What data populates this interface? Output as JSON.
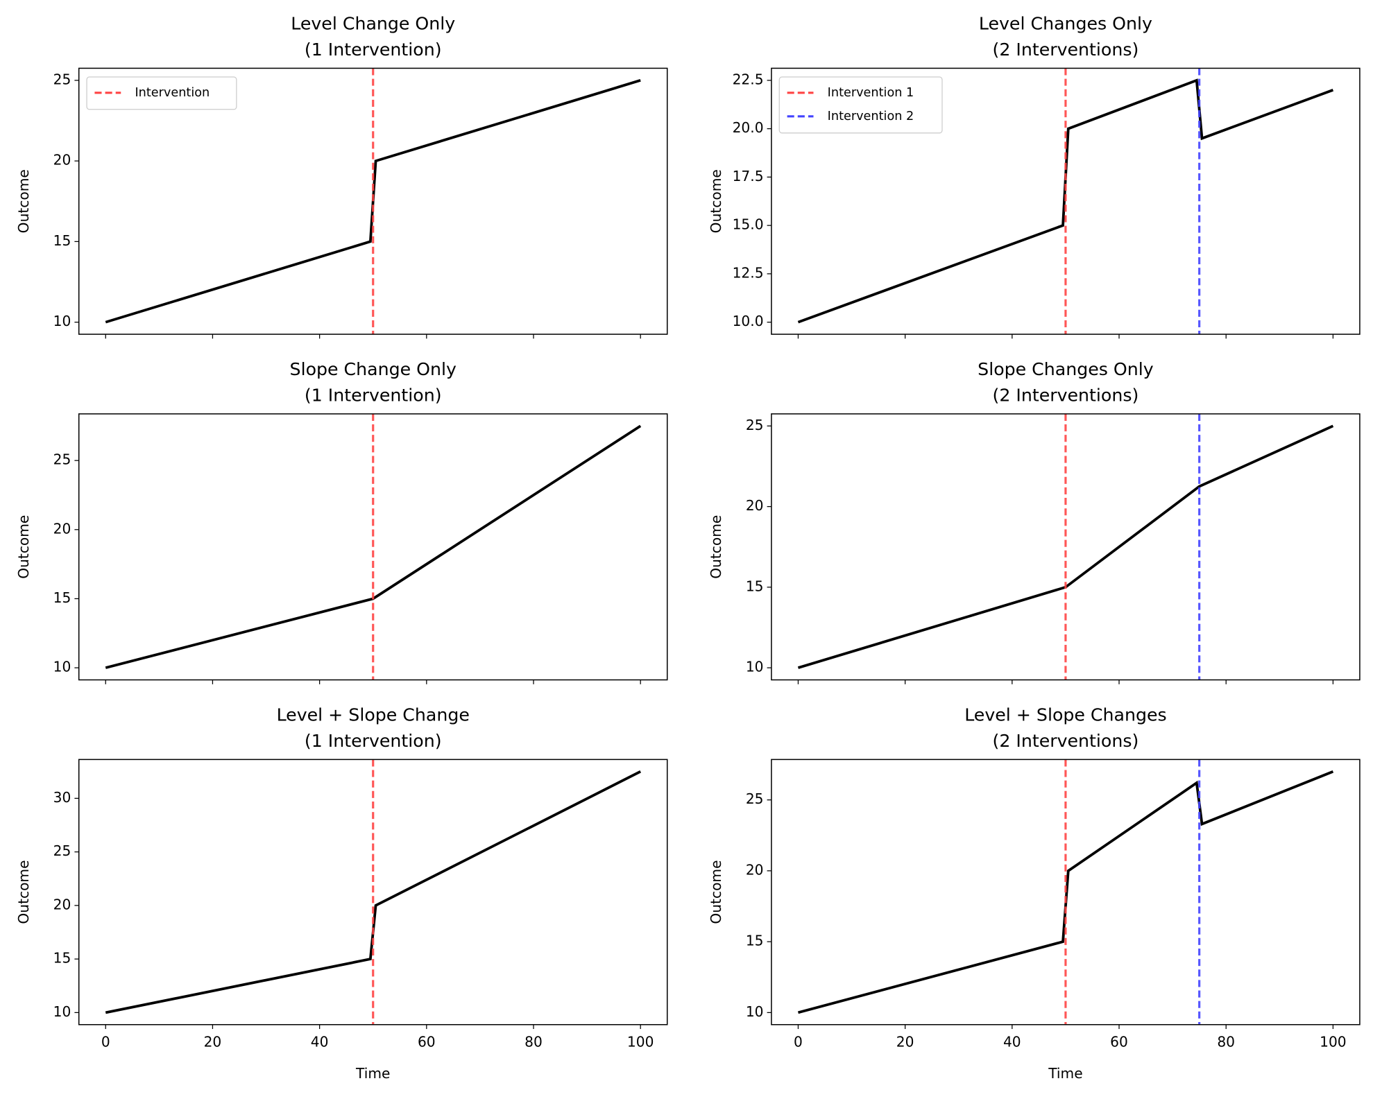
{
  "chart_data": [
    {
      "type": "line",
      "title": [
        "Level Change Only",
        "(1 Intervention)"
      ],
      "ylabel": "Outcome",
      "x": [
        0,
        49.5,
        50.5,
        100
      ],
      "series": [
        {
          "color": "#000000",
          "values": [
            10,
            15,
            20,
            25
          ]
        }
      ],
      "vlines": [
        {
          "x": 50,
          "color": "#ff4444",
          "name": "Intervention"
        }
      ],
      "legend": "upper left",
      "xlim": [
        -5,
        105
      ],
      "xticks": [
        0,
        20,
        40,
        60,
        80,
        100
      ],
      "ylim": [
        9.25,
        25.75
      ],
      "yticks": [
        10,
        15,
        20,
        25
      ]
    },
    {
      "type": "line",
      "title": [
        "Level Changes Only",
        "(2 Interventions)"
      ],
      "ylabel": "Outcome",
      "x": [
        0,
        49.5,
        50.5,
        74.5,
        75.5,
        100
      ],
      "series": [
        {
          "color": "#000000",
          "values": [
            10,
            15,
            20,
            22.5,
            19.5,
            22
          ]
        }
      ],
      "vlines": [
        {
          "x": 50,
          "color": "#ff4444",
          "name": "Intervention 1"
        },
        {
          "x": 75,
          "color": "#4444ff",
          "name": "Intervention 2"
        }
      ],
      "legend": "upper left",
      "xlim": [
        -5,
        105
      ],
      "xticks": [
        0,
        20,
        40,
        60,
        80,
        100
      ],
      "ylim": [
        9.375,
        23.125
      ],
      "yticks": [
        {
          "value": 10,
          "label": "10.0"
        },
        {
          "value": 12.5,
          "label": "12.5"
        },
        {
          "value": 15,
          "label": "15.0"
        },
        {
          "value": 17.5,
          "label": "17.5"
        },
        {
          "value": 20,
          "label": "20.0"
        },
        {
          "value": 22.5,
          "label": "22.5"
        }
      ]
    },
    {
      "type": "line",
      "title": [
        "Slope Change Only",
        "(1 Intervention)"
      ],
      "ylabel": "Outcome",
      "x": [
        0,
        50,
        100
      ],
      "series": [
        {
          "color": "#000000",
          "values": [
            10,
            15,
            27.5
          ]
        }
      ],
      "vlines": [
        {
          "x": 50,
          "color": "#ff4444"
        }
      ],
      "xlim": [
        -5,
        105
      ],
      "xticks": [
        0,
        20,
        40,
        60,
        80,
        100
      ],
      "ylim": [
        9.125,
        28.375
      ],
      "yticks": [
        10,
        15,
        20,
        25
      ]
    },
    {
      "type": "line",
      "title": [
        "Slope Changes Only",
        "(2 Interventions)"
      ],
      "ylabel": "Outcome",
      "x": [
        0,
        50,
        75,
        100
      ],
      "series": [
        {
          "color": "#000000",
          "values": [
            10,
            15,
            21.25,
            25
          ]
        }
      ],
      "vlines": [
        {
          "x": 50,
          "color": "#ff4444"
        },
        {
          "x": 75,
          "color": "#4444ff"
        }
      ],
      "xlim": [
        -5,
        105
      ],
      "xticks": [
        0,
        20,
        40,
        60,
        80,
        100
      ],
      "ylim": [
        9.25,
        25.75
      ],
      "yticks": [
        10,
        15,
        20,
        25
      ]
    },
    {
      "type": "line",
      "title": [
        "Level + Slope Change",
        "(1 Intervention)"
      ],
      "ylabel": "Outcome",
      "xlabel": "Time",
      "x": [
        0,
        49.5,
        50.5,
        100
      ],
      "series": [
        {
          "color": "#000000",
          "values": [
            10,
            15,
            20,
            32.5
          ]
        }
      ],
      "vlines": [
        {
          "x": 50,
          "color": "#ff4444"
        }
      ],
      "xlim": [
        -5,
        105
      ],
      "xticks": [
        0,
        20,
        40,
        60,
        80,
        100
      ],
      "ylim": [
        8.875,
        33.625
      ],
      "yticks": [
        10,
        15,
        20,
        25,
        30
      ]
    },
    {
      "type": "line",
      "title": [
        "Level + Slope Changes",
        "(2 Interventions)"
      ],
      "ylabel": "Outcome",
      "xlabel": "Time",
      "x": [
        0,
        49.5,
        50.5,
        74.5,
        75.5,
        100
      ],
      "series": [
        {
          "color": "#000000",
          "values": [
            10,
            15,
            20,
            26.2,
            23.3,
            27
          ]
        }
      ],
      "vlines": [
        {
          "x": 50,
          "color": "#ff4444"
        },
        {
          "x": 75,
          "color": "#4444ff"
        }
      ],
      "xlim": [
        -5,
        105
      ],
      "xticks": [
        0,
        20,
        40,
        60,
        80,
        100
      ],
      "ylim": [
        9.15,
        27.85
      ],
      "yticks": [
        10,
        15,
        20,
        25
      ]
    }
  ]
}
